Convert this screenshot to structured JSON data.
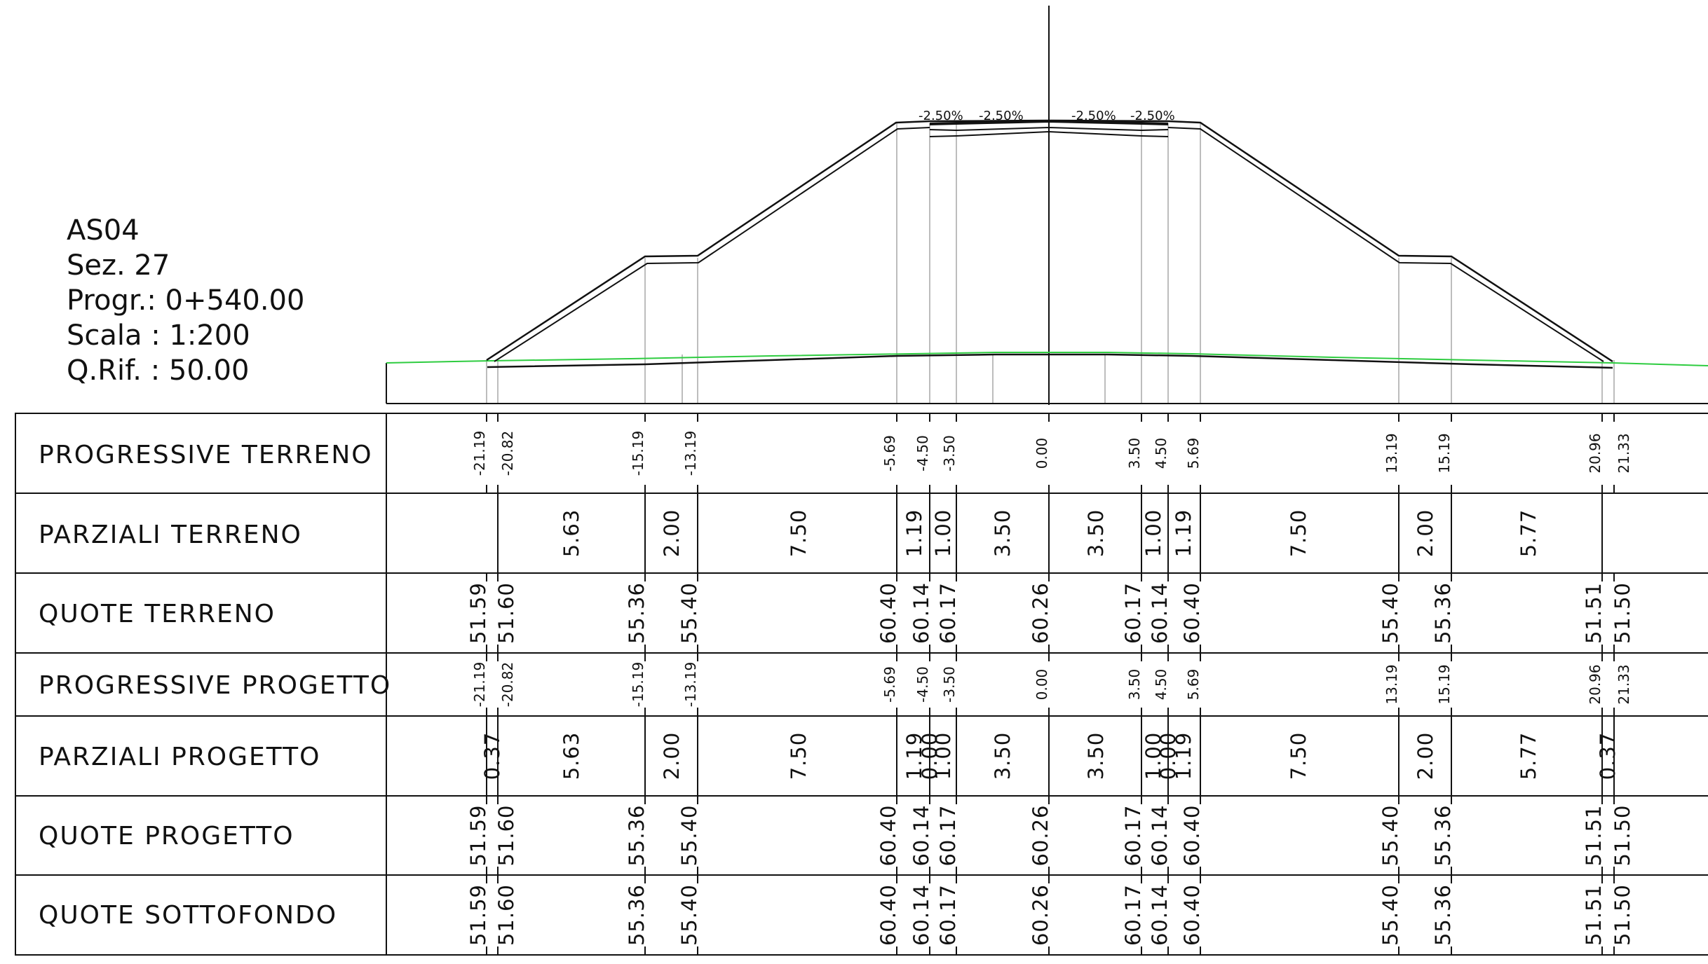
{
  "info": {
    "code": "AS04",
    "section": "Sez. 27",
    "progressive": "Progr.: 0+540.00",
    "scale": "Scala : 1:200",
    "reference": "Q.Rif. : 50.00"
  },
  "slopes": [
    "-2.50%",
    "-2.50%",
    "-2.50%",
    "-2.50%"
  ],
  "table": {
    "rows": [
      {
        "key": "prog_terreno",
        "label": "PROGRESSIVE TERRENO",
        "kind": "small",
        "values": [
          {
            "t": "-21.19"
          },
          {
            "t": "-20.82"
          },
          {
            "t": "-15.19"
          },
          {
            "t": "-13.19"
          },
          {
            "t": "-5.69"
          },
          {
            "t": "-4.50"
          },
          {
            "t": "-3.50"
          },
          {
            "t": "0.00"
          },
          {
            "t": "3.50"
          },
          {
            "t": "4.50"
          },
          {
            "t": "5.69"
          },
          {
            "t": "13.19"
          },
          {
            "t": "15.19"
          },
          {
            "t": "20.96"
          },
          {
            "t": "21.33"
          }
        ]
      },
      {
        "key": "parz_terreno",
        "label": "PARZIALI TERRENO",
        "kind": "big",
        "values": [
          {
            "t": "5.63"
          },
          {
            "t": "2.00"
          },
          {
            "t": "7.50"
          },
          {
            "t": "1.19"
          },
          {
            "t": "1.00"
          },
          {
            "t": "3.50"
          },
          {
            "t": "3.50"
          },
          {
            "t": "1.00"
          },
          {
            "t": "1.19"
          },
          {
            "t": "7.50"
          },
          {
            "t": "2.00"
          },
          {
            "t": "5.77"
          }
        ]
      },
      {
        "key": "quote_terreno",
        "label": "QUOTE TERRENO",
        "kind": "big",
        "values": [
          {
            "t": "51.59"
          },
          {
            "t": "51.60"
          },
          {
            "t": "55.36"
          },
          {
            "t": "55.40"
          },
          {
            "t": "60.40"
          },
          {
            "t": "60.14"
          },
          {
            "t": "60.17"
          },
          {
            "t": "60.26"
          },
          {
            "t": "60.17"
          },
          {
            "t": "60.14"
          },
          {
            "t": "60.40"
          },
          {
            "t": "55.40"
          },
          {
            "t": "55.36"
          },
          {
            "t": "51.51"
          },
          {
            "t": "51.50"
          }
        ]
      },
      {
        "key": "prog_progetto",
        "label": "PROGRESSIVE PROGETTO",
        "kind": "small",
        "values": [
          {
            "t": "-21.19"
          },
          {
            "t": "-20.82"
          },
          {
            "t": "-15.19"
          },
          {
            "t": "-13.19"
          },
          {
            "t": "-5.69"
          },
          {
            "t": "-4.50"
          },
          {
            "t": "-3.50"
          },
          {
            "t": "0.00"
          },
          {
            "t": "3.50"
          },
          {
            "t": "4.50"
          },
          {
            "t": "5.69"
          },
          {
            "t": "13.19"
          },
          {
            "t": "15.19"
          },
          {
            "t": "20.96"
          },
          {
            "t": "21.33"
          }
        ]
      },
      {
        "key": "parz_progetto",
        "label": "PARZIALI PROGETTO",
        "kind": "big",
        "values": [
          {
            "t": "0.37"
          },
          {
            "t": "5.63"
          },
          {
            "t": "2.00"
          },
          {
            "t": "7.50"
          },
          {
            "t": "1.19"
          },
          {
            "t": "0.00"
          },
          {
            "t": "1.00"
          },
          {
            "t": "3.50"
          },
          {
            "t": "3.50"
          },
          {
            "t": "1.00"
          },
          {
            "t": "0.00"
          },
          {
            "t": "1.19"
          },
          {
            "t": "7.50"
          },
          {
            "t": "2.00"
          },
          {
            "t": "5.77"
          },
          {
            "t": "0.37"
          }
        ]
      },
      {
        "key": "quote_progetto",
        "label": "QUOTE PROGETTO",
        "kind": "big",
        "values": [
          {
            "t": "51.59"
          },
          {
            "t": "51.60"
          },
          {
            "t": "55.36"
          },
          {
            "t": "55.40"
          },
          {
            "t": "60.40"
          },
          {
            "t": "60.14"
          },
          {
            "t": "60.17"
          },
          {
            "t": "60.26"
          },
          {
            "t": "60.17"
          },
          {
            "t": "60.14"
          },
          {
            "t": "60.40"
          },
          {
            "t": "55.40"
          },
          {
            "t": "55.36"
          },
          {
            "t": "51.51"
          },
          {
            "t": "51.50"
          }
        ]
      },
      {
        "key": "quote_sottofondo",
        "label": "QUOTE SOTTOFONDO",
        "kind": "big",
        "values": [
          {
            "t": "51.59"
          },
          {
            "t": "51.60"
          },
          {
            "t": "55.36"
          },
          {
            "t": "55.40"
          },
          {
            "t": "60.40"
          },
          {
            "t": "60.14"
          },
          {
            "t": "60.17"
          },
          {
            "t": "60.26"
          },
          {
            "t": "60.17"
          },
          {
            "t": "60.14"
          },
          {
            "t": "60.40"
          },
          {
            "t": "55.40"
          },
          {
            "t": "55.36"
          },
          {
            "t": "51.51"
          },
          {
            "t": "51.50"
          }
        ]
      }
    ]
  },
  "colors": {
    "ink": "#111111",
    "ground_line": "#2ecc40",
    "guide_line": "#bdbdbd"
  }
}
